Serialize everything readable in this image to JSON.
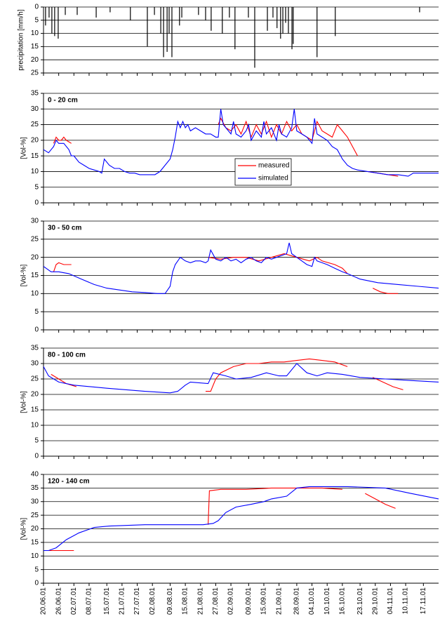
{
  "chart_data": [
    {
      "type": "bar",
      "ylabel": "precipitation [mm/h]",
      "color": "#000000",
      "y_inverted": true,
      "grid": true,
      "ylim": [
        0,
        25
      ],
      "yticks": [
        0,
        5,
        10,
        15,
        20,
        25
      ],
      "x": [
        0.8,
        2.2,
        3.3,
        4.4,
        5.8,
        8.6,
        13.3,
        20.8,
        26.3,
        34.3,
        41,
        43.8,
        46.3,
        47.4,
        48.8,
        49.6,
        50.7,
        53.7,
        54.6,
        61.2,
        64,
        66.2,
        70.6,
        73.4,
        75.6,
        80.9,
        83.4,
        88.4,
        90.6,
        92.2,
        93.6,
        94.5,
        95.6,
        96.7,
        98.1,
        98.6,
        108,
        115.2,
        148.5
      ],
      "values": [
        7,
        4,
        10,
        11,
        12,
        3,
        3,
        4,
        2,
        5,
        15,
        3,
        10,
        19,
        17,
        10,
        19,
        7,
        4,
        3,
        5,
        9,
        10,
        4,
        16,
        4,
        23,
        9,
        4,
        8,
        12,
        10,
        6,
        10,
        16,
        14,
        19,
        11,
        2
      ]
    },
    {
      "type": "line",
      "title": "0 - 20 cm",
      "ylabel": "[Vol-%]",
      "grid": true,
      "legend": "center",
      "ylim": [
        0,
        35
      ],
      "yticks": [
        0,
        5,
        10,
        15,
        20,
        25,
        30,
        35
      ],
      "series": [
        {
          "name": "measured",
          "color": "#ff0000",
          "x": [
            4,
            5,
            6,
            7,
            8,
            9,
            10,
            11,
            null,
            69,
            70,
            72,
            74,
            76,
            78,
            80,
            82,
            84,
            86,
            88,
            90,
            92,
            94,
            96,
            98,
            100,
            102,
            104,
            106,
            108,
            110,
            112,
            114,
            116,
            118,
            120,
            122,
            124,
            null,
            128,
            132,
            136,
            140
          ],
          "values": [
            19,
            21,
            20,
            20,
            21,
            20,
            19.5,
            19,
            null,
            25,
            27,
            24,
            23,
            25,
            22,
            26,
            21,
            25,
            22,
            26,
            21,
            25,
            22,
            26,
            23,
            25,
            22,
            21,
            20,
            26,
            23,
            22,
            21,
            25,
            23,
            21,
            18,
            15,
            null,
            10,
            9.5,
            9,
            8.5
          ]
        },
        {
          "name": "simulated",
          "color": "#0000ff",
          "x": [
            0,
            2,
            4,
            5,
            6,
            8,
            10,
            11,
            12,
            14,
            16,
            18,
            20,
            22,
            23,
            24,
            26,
            28,
            30,
            32,
            34,
            36,
            38,
            40,
            42,
            44,
            46,
            48,
            50,
            51,
            52,
            53,
            54,
            55,
            56,
            57,
            58,
            60,
            62,
            64,
            66,
            68,
            69,
            70,
            71,
            72,
            74,
            75,
            76,
            78,
            80,
            81,
            82,
            84,
            86,
            87,
            88,
            90,
            92,
            93,
            94,
            96,
            98,
            99,
            100,
            102,
            104,
            106,
            107,
            108,
            110,
            112,
            114,
            116,
            118,
            120,
            122,
            124,
            128,
            132,
            136,
            140,
            144,
            146,
            148,
            152,
            156
          ],
          "values": [
            17,
            16,
            18,
            20,
            19,
            19,
            17,
            15,
            15,
            13,
            12,
            11,
            10.5,
            10,
            9.5,
            14,
            12,
            11,
            11,
            10,
            9.5,
            9.5,
            9,
            9,
            9,
            9,
            10,
            12,
            14,
            17,
            21,
            26,
            24,
            26,
            24,
            25,
            23,
            24,
            23,
            22,
            22,
            21,
            21,
            30,
            25,
            24,
            22,
            26,
            22,
            21,
            23,
            25,
            20,
            23,
            21,
            26,
            22,
            24,
            20,
            25,
            22,
            21,
            24,
            30,
            23,
            22,
            21,
            19,
            27,
            22,
            21,
            20,
            18,
            17,
            14,
            12,
            11,
            10.5,
            10,
            9.5,
            9,
            9,
            8.5,
            9.5,
            9.5,
            9.5,
            9.5
          ]
        }
      ]
    },
    {
      "type": "line",
      "title": "30 - 50 cm",
      "ylabel": "[Vol-%]",
      "grid": true,
      "ylim": [
        0,
        30
      ],
      "yticks": [
        0,
        5,
        10,
        15,
        20,
        25,
        30
      ],
      "series": [
        {
          "color": "#ff0000",
          "x": [
            4,
            5,
            6,
            8,
            10,
            11,
            null,
            65,
            70,
            75,
            80,
            85,
            90,
            95,
            100,
            105,
            108,
            110,
            115,
            118,
            120,
            null,
            130,
            133,
            136,
            140
          ],
          "values": [
            16,
            18,
            18.5,
            18,
            18,
            18,
            null,
            20,
            19.5,
            20,
            20,
            19,
            20,
            21,
            20,
            19,
            20,
            19,
            18,
            17,
            15.5,
            null,
            11.5,
            10.5,
            10,
            10
          ]
        },
        {
          "color": "#0000ff",
          "x": [
            0,
            3,
            6,
            10,
            15,
            20,
            25,
            30,
            35,
            40,
            45,
            48,
            49,
            50,
            51,
            52,
            54,
            56,
            58,
            60,
            62,
            64,
            65,
            66,
            68,
            70,
            72,
            74,
            76,
            78,
            80,
            82,
            84,
            86,
            88,
            90,
            92,
            94,
            96,
            97,
            98,
            100,
            102,
            104,
            106,
            107,
            108,
            110,
            112,
            115,
            118,
            120,
            125,
            132,
            140,
            148,
            156
          ],
          "values": [
            17.5,
            16,
            16,
            15.5,
            14,
            12.5,
            11.5,
            11,
            10.5,
            10.3,
            10,
            10,
            11,
            12,
            16,
            18,
            20,
            19,
            18.5,
            19,
            19,
            18.5,
            19,
            22,
            19.5,
            19,
            20,
            19,
            19.5,
            18.5,
            19.5,
            20,
            19,
            18.5,
            20,
            19.5,
            20,
            20.5,
            21,
            24,
            21,
            20,
            19,
            18,
            17.5,
            20,
            19,
            18.5,
            18,
            17,
            16,
            15.5,
            14,
            13,
            12.5,
            12,
            11.5
          ]
        }
      ]
    },
    {
      "type": "line",
      "title": "80  - 100 cm",
      "ylabel": "[Vol-%]",
      "grid": true,
      "ylim": [
        0,
        35
      ],
      "yticks": [
        0,
        5,
        10,
        15,
        20,
        25,
        30,
        35
      ],
      "series": [
        {
          "color": "#ff0000",
          "x": [
            3,
            6,
            9,
            13,
            null,
            64,
            66,
            68,
            70,
            75,
            80,
            85,
            90,
            95,
            100,
            105,
            110,
            115,
            120,
            null,
            130,
            134,
            138,
            142
          ],
          "values": [
            26.5,
            25,
            23.5,
            22.5,
            null,
            21,
            21,
            25,
            27,
            29,
            30,
            30,
            30.5,
            30.5,
            31,
            31.5,
            31,
            30.5,
            29,
            null,
            25.5,
            24,
            22.5,
            21.5
          ]
        },
        {
          "color": "#0000ff",
          "x": [
            0,
            2,
            6,
            12,
            25,
            40,
            50,
            53,
            56,
            58,
            65,
            67,
            72,
            76,
            82,
            88,
            93,
            96,
            100,
            104,
            108,
            112,
            118,
            125,
            135,
            145,
            156
          ],
          "values": [
            29,
            26,
            24,
            23,
            22,
            21,
            20.5,
            21,
            23,
            24,
            23.5,
            27,
            26,
            25,
            25.5,
            27,
            26,
            26,
            30,
            27,
            26,
            27,
            26.5,
            25.5,
            25,
            24.5,
            24
          ]
        }
      ]
    },
    {
      "type": "line",
      "title": "120 - 140 cm",
      "ylabel": "[Vol-%]",
      "grid": true,
      "ylim": [
        0,
        40
      ],
      "yticks": [
        0,
        5,
        10,
        15,
        20,
        25,
        30,
        35,
        40
      ],
      "xlim": [
        0,
        156
      ],
      "xticks": [
        {
          "value": 0,
          "label": "20.06.01"
        },
        {
          "value": 6,
          "label": "26.06.01"
        },
        {
          "value": 12,
          "label": "02.07.01"
        },
        {
          "value": 18,
          "label": "08.07.01"
        },
        {
          "value": 25,
          "label": "15.07.01"
        },
        {
          "value": 31,
          "label": "21.07.01"
        },
        {
          "value": 37,
          "label": "27.07.01"
        },
        {
          "value": 43,
          "label": "02.08.01"
        },
        {
          "value": 50,
          "label": "09.08.01"
        },
        {
          "value": 56,
          "label": "15.08.01"
        },
        {
          "value": 62,
          "label": "21.08.01"
        },
        {
          "value": 68,
          "label": "27.08.01"
        },
        {
          "value": 74,
          "label": "02.09.01"
        },
        {
          "value": 81,
          "label": "09.09.01"
        },
        {
          "value": 87,
          "label": "15.09.01"
        },
        {
          "value": 93,
          "label": "21.09.01"
        },
        {
          "value": 100,
          "label": "28.09.01"
        },
        {
          "value": 106,
          "label": "04.10.01"
        },
        {
          "value": 112,
          "label": "10.10.01"
        },
        {
          "value": 118,
          "label": "16.10.01"
        },
        {
          "value": 125,
          "label": "23.10.01"
        },
        {
          "value": 131,
          "label": "29.10.01"
        },
        {
          "value": 137,
          "label": "04.11.01"
        },
        {
          "value": 143,
          "label": "10.11.01"
        },
        {
          "value": 150,
          "label": "17.11.01"
        }
      ],
      "series": [
        {
          "color": "#ff0000",
          "x": [
            0,
            4,
            8,
            12,
            null,
            65,
            65.5,
            70,
            80,
            90,
            95,
            100,
            110,
            118,
            null,
            127,
            131,
            135,
            139
          ],
          "values": [
            12,
            12,
            12,
            12,
            null,
            21.5,
            34,
            34.5,
            34.5,
            35,
            35,
            35,
            35,
            34.5,
            null,
            33,
            31,
            29,
            27.5
          ]
        },
        {
          "color": "#0000ff",
          "x": [
            0,
            2,
            5,
            9,
            14,
            20,
            26,
            40,
            55,
            63,
            67,
            69,
            72,
            76,
            82,
            87,
            90,
            96,
            100,
            105,
            120,
            135,
            145,
            156
          ],
          "values": [
            12,
            12,
            13,
            16,
            18.5,
            20.5,
            21,
            21.5,
            21.5,
            21.5,
            22,
            23,
            26,
            28,
            29,
            30,
            31,
            32,
            35,
            35.5,
            35.5,
            35,
            33,
            31
          ]
        }
      ]
    }
  ]
}
